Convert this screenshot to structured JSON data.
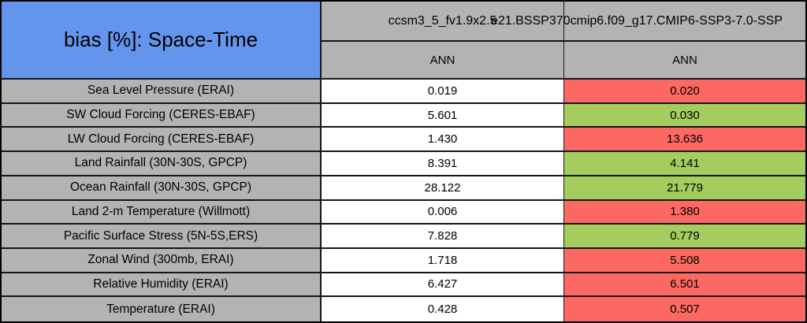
{
  "title": "bias [%]: Space-Time",
  "columns": [
    {
      "model": "ccsm3_5_fv1.9x2.5",
      "season": "ANN"
    },
    {
      "model": "e21.BSSP370cmip6.f09_g17.CMIP6-SSP3-7.0-SSP",
      "season": "ANN"
    }
  ],
  "rows": [
    {
      "label": "Sea Level Pressure (ERAI)",
      "col1": "0.019",
      "col1_status": "neutral",
      "col2": "0.020",
      "col2_status": "worse"
    },
    {
      "label": "SW Cloud Forcing (CERES-EBAF)",
      "col1": "5.601",
      "col1_status": "neutral",
      "col2": "0.030",
      "col2_status": "better"
    },
    {
      "label": "LW Cloud Forcing (CERES-EBAF)",
      "col1": "1.430",
      "col1_status": "neutral",
      "col2": "13.636",
      "col2_status": "worse"
    },
    {
      "label": "Land Rainfall (30N-30S, GPCP)",
      "col1": "8.391",
      "col1_status": "neutral",
      "col2": "4.141",
      "col2_status": "better"
    },
    {
      "label": "Ocean Rainfall (30N-30S, GPCP)",
      "col1": "28.122",
      "col1_status": "neutral",
      "col2": "21.779",
      "col2_status": "better"
    },
    {
      "label": "Land 2-m Temperature (Willmott)",
      "col1": "0.006",
      "col1_status": "neutral",
      "col2": "1.380",
      "col2_status": "worse"
    },
    {
      "label": "Pacific Surface Stress (5N-5S,ERS)",
      "col1": "7.828",
      "col1_status": "neutral",
      "col2": "0.779",
      "col2_status": "better"
    },
    {
      "label": "Zonal Wind (300mb, ERAI)",
      "col1": "1.718",
      "col1_status": "neutral",
      "col2": "5.508",
      "col2_status": "worse"
    },
    {
      "label": "Relative Humidity (ERAI)",
      "col1": "6.427",
      "col1_status": "neutral",
      "col2": "6.501",
      "col2_status": "worse"
    },
    {
      "label": "Temperature (ERAI)",
      "col1": "0.428",
      "col1_status": "neutral",
      "col2": "0.507",
      "col2_status": "worse"
    }
  ],
  "colors": {
    "title_blue": "#6495ED",
    "cell_gray": "#B3B3B3",
    "neutral": "#FFFFFF",
    "worse": "#FB6962",
    "better": "#A4CC5E"
  },
  "chart_data": {
    "type": "table",
    "title": "bias [%]: Space-Time",
    "row_labels": [
      "Sea Level Pressure (ERAI)",
      "SW Cloud Forcing (CERES-EBAF)",
      "LW Cloud Forcing (CERES-EBAF)",
      "Land Rainfall (30N-30S, GPCP)",
      "Ocean Rainfall (30N-30S, GPCP)",
      "Land 2-m Temperature (Willmott)",
      "Pacific Surface Stress (5N-5S,ERS)",
      "Zonal Wind (300mb, ERAI)",
      "Relative Humidity (ERAI)",
      "Temperature (ERAI)"
    ],
    "series": [
      {
        "name": "ccsm3_5_fv1.9x2.5",
        "season": "ANN",
        "values": [
          0.019,
          5.601,
          1.43,
          8.391,
          28.122,
          0.006,
          7.828,
          1.718,
          6.427,
          0.428
        ],
        "cell_highlight": [
          "white",
          "white",
          "white",
          "white",
          "white",
          "white",
          "white",
          "white",
          "white",
          "white"
        ]
      },
      {
        "name": "e21.BSSP370cmip6.f09_g17.CMIP6-SSP3-7.0-SSP",
        "season": "ANN",
        "values": [
          0.02,
          0.03,
          13.636,
          4.141,
          21.779,
          1.38,
          0.779,
          5.508,
          6.501,
          0.507
        ],
        "cell_highlight": [
          "red",
          "green",
          "red",
          "green",
          "green",
          "red",
          "green",
          "red",
          "red",
          "red"
        ]
      }
    ],
    "legend_position": "none",
    "grid": true
  }
}
